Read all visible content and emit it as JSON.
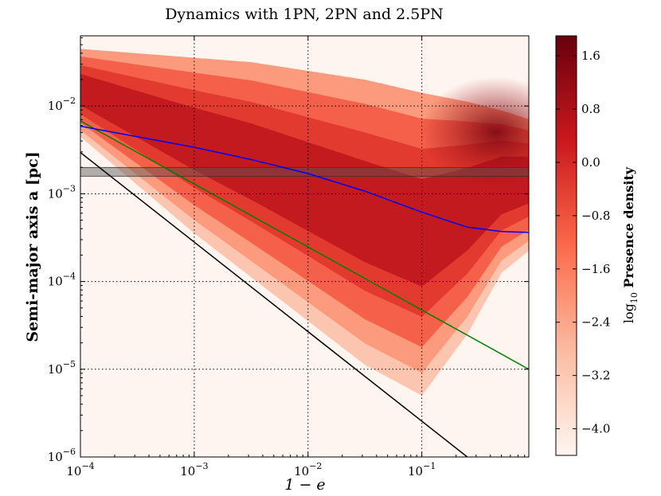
{
  "chart_data": {
    "type": "heatmap",
    "title": "Dynamics with 1PN, 2PN and 2.5PN",
    "xlabel": "1 − e",
    "ylabel": "Semi-major axis a [pc]",
    "x_scale": "log",
    "y_scale": "log",
    "xlim_log10": [
      -4,
      -0.06
    ],
    "ylim_log10": [
      -6,
      -1.2
    ],
    "x_ticks": [
      {
        "exp": -4,
        "base": "10",
        "power": "−4"
      },
      {
        "exp": -3,
        "base": "10",
        "power": "−3"
      },
      {
        "exp": -2,
        "base": "10",
        "power": "−2"
      },
      {
        "exp": -1,
        "base": "10",
        "power": "−1"
      }
    ],
    "y_ticks": [
      {
        "exp": -6,
        "base": "10",
        "power": "−6"
      },
      {
        "exp": -5,
        "base": "10",
        "power": "−5"
      },
      {
        "exp": -4,
        "base": "10",
        "power": "−4"
      },
      {
        "exp": -3,
        "base": "10",
        "power": "−3"
      },
      {
        "exp": -2,
        "base": "10",
        "power": "−2"
      }
    ],
    "grid": true,
    "shaded_band_log10_a": [
      -2.8,
      -2.7
    ],
    "lines": [
      {
        "name": "black",
        "color": "#000000",
        "points": [
          [
            -4,
            -2.53
          ],
          [
            -0.6,
            -6.0
          ]
        ]
      },
      {
        "name": "green",
        "color": "#008000",
        "points": [
          [
            -4,
            -2.17
          ],
          [
            -0.06,
            -5.0
          ]
        ]
      },
      {
        "name": "blue",
        "color": "#0000ff",
        "points": [
          [
            -4,
            -2.23
          ],
          [
            -3.5,
            -2.35
          ],
          [
            -3.0,
            -2.47
          ],
          [
            -2.5,
            -2.61
          ],
          [
            -2.0,
            -2.77
          ],
          [
            -1.5,
            -2.97
          ],
          [
            -1.0,
            -3.21
          ],
          [
            -0.6,
            -3.38
          ],
          [
            -0.3,
            -3.43
          ],
          [
            -0.06,
            -3.44
          ]
        ]
      }
    ],
    "density_ridge": {
      "x_log10": [
        -4.0,
        -3.5,
        -3.0,
        -2.5,
        -2.0,
        -1.5,
        -1.0,
        -0.6,
        -0.3,
        -0.06
      ],
      "upper_log10_a": [
        -1.35,
        -1.4,
        -1.45,
        -1.5,
        -1.6,
        -1.7,
        -1.85,
        -1.95,
        -2.05,
        -2.15
      ],
      "lower_log10_a": [
        -2.35,
        -2.9,
        -3.45,
        -3.95,
        -4.45,
        -4.95,
        -5.3,
        -4.6,
        -3.9,
        -3.65
      ],
      "peak_x_log10": -0.35,
      "peak_y_log10": -2.3
    },
    "colorbar": {
      "label_prefix": "log",
      "label_sub": "10",
      "label_text": " Presence density",
      "range": [
        -4.4,
        1.9
      ],
      "colors": [
        "#fff5f0",
        "#fcbba1",
        "#fb6a4a",
        "#cb181d",
        "#67000d"
      ],
      "ticks": [
        "1.6",
        "0.8",
        "0.0",
        "−0.8",
        "−1.6",
        "−2.4",
        "−3.2",
        "−4.0"
      ],
      "tick_values": [
        1.6,
        0.8,
        0.0,
        -0.8,
        -1.6,
        -2.4,
        -3.2,
        -4.0
      ]
    }
  }
}
